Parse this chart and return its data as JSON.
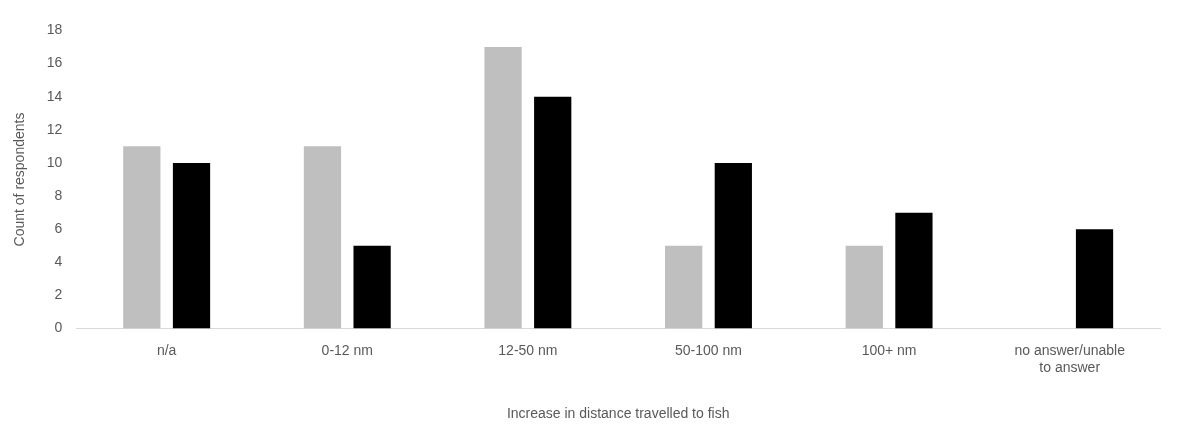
{
  "chart_data": {
    "type": "bar",
    "xlabel": "Increase in distance travelled to fish",
    "ylabel": "Count of respondents",
    "categories": [
      "n/a",
      "0-12 nm",
      "12-50 nm",
      "50-100 nm",
      "100+ nm",
      "no answer/unable to answer"
    ],
    "series": [
      {
        "color": "#bfbfbf",
        "values": [
          11,
          11,
          17,
          5,
          5,
          0
        ]
      },
      {
        "color": "#000000",
        "values": [
          10,
          5,
          14,
          10,
          7,
          6
        ]
      }
    ],
    "ylim": [
      0,
      18
    ],
    "yticks": [
      0,
      2,
      4,
      6,
      8,
      10,
      12,
      14,
      16,
      18
    ],
    "grid": false,
    "legend": false
  }
}
